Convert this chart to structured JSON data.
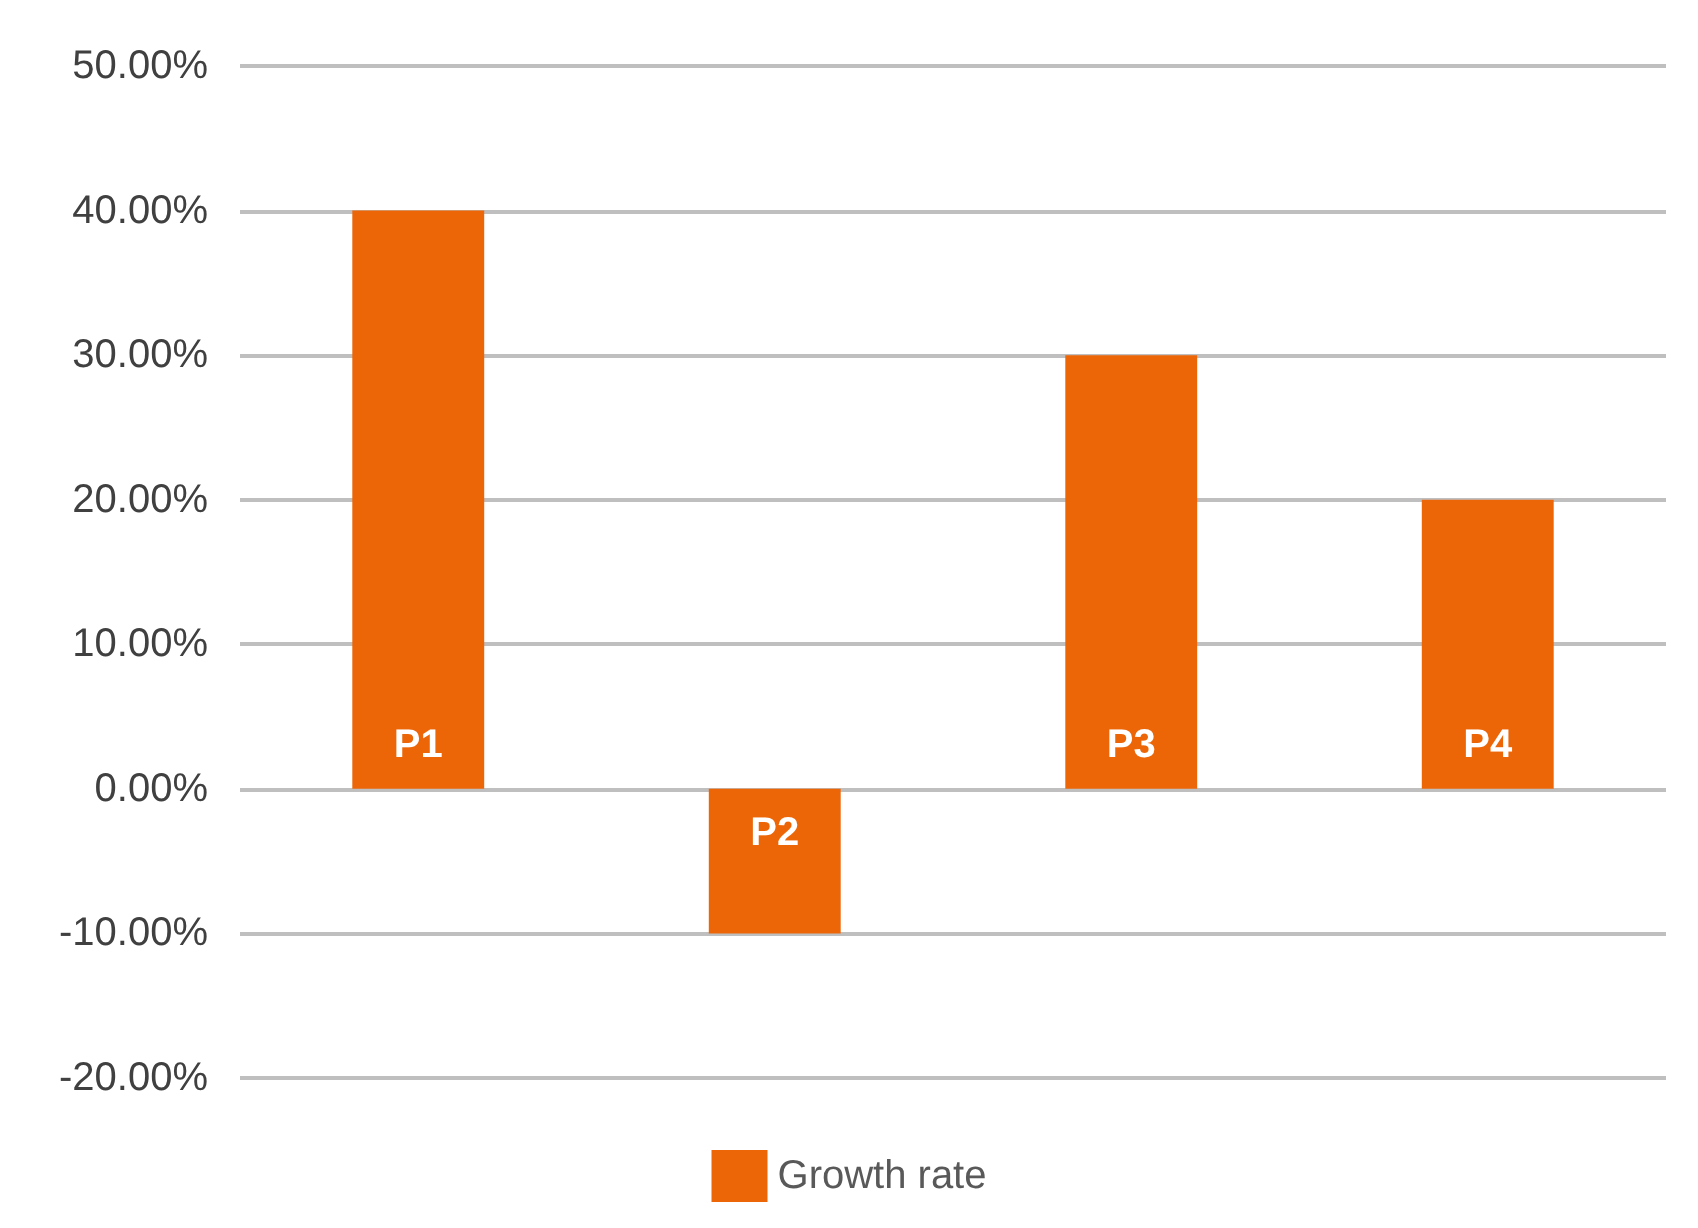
{
  "chart_data": {
    "type": "bar",
    "categories": [
      "P1",
      "P2",
      "P3",
      "P4"
    ],
    "series": [
      {
        "name": "Growth rate",
        "color": "#ec6608",
        "values": [
          40,
          -10,
          30,
          20
        ]
      }
    ],
    "ylim": [
      -20,
      50
    ],
    "yticks": [
      {
        "value": -20,
        "label": "-20.00%"
      },
      {
        "value": -10,
        "label": "-10.00%"
      },
      {
        "value": 0,
        "label": "0.00%"
      },
      {
        "value": 10,
        "label": "10.00%"
      },
      {
        "value": 20,
        "label": "20.00%"
      },
      {
        "value": 30,
        "label": "30.00%"
      },
      {
        "value": 40,
        "label": "40.00%"
      },
      {
        "value": 50,
        "label": "50.00%"
      }
    ],
    "grid": "y",
    "legend": "bottom",
    "tick_labels": "y"
  }
}
